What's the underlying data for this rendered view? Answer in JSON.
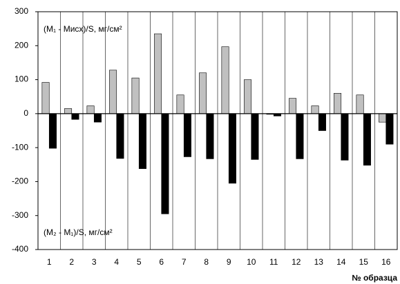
{
  "chart_data": {
    "type": "bar",
    "xlabel": "№ образца",
    "categories": [
      "1",
      "2",
      "3",
      "4",
      "5",
      "6",
      "7",
      "8",
      "9",
      "10",
      "11",
      "12",
      "13",
      "14",
      "15",
      "16"
    ],
    "series": [
      {
        "name": "(M₁ - Mисх)/S, мг/см²",
        "color": "#c0c0c0",
        "values": [
          92,
          15,
          23,
          128,
          105,
          235,
          55,
          120,
          197,
          100,
          -2,
          45,
          23,
          60,
          55,
          -25
        ]
      },
      {
        "name": "(M₂ - M₁)/S, мг/см²",
        "color": "#000000",
        "values": [
          -102,
          -17,
          -25,
          -132,
          -162,
          -295,
          -127,
          -133,
          -205,
          -135,
          -7,
          -133,
          -50,
          -137,
          -152,
          -90
        ]
      }
    ],
    "ylim": [
      -400,
      300
    ],
    "yticks": [
      -400,
      -300,
      -200,
      -100,
      0,
      100,
      200,
      300
    ],
    "grid": true
  }
}
